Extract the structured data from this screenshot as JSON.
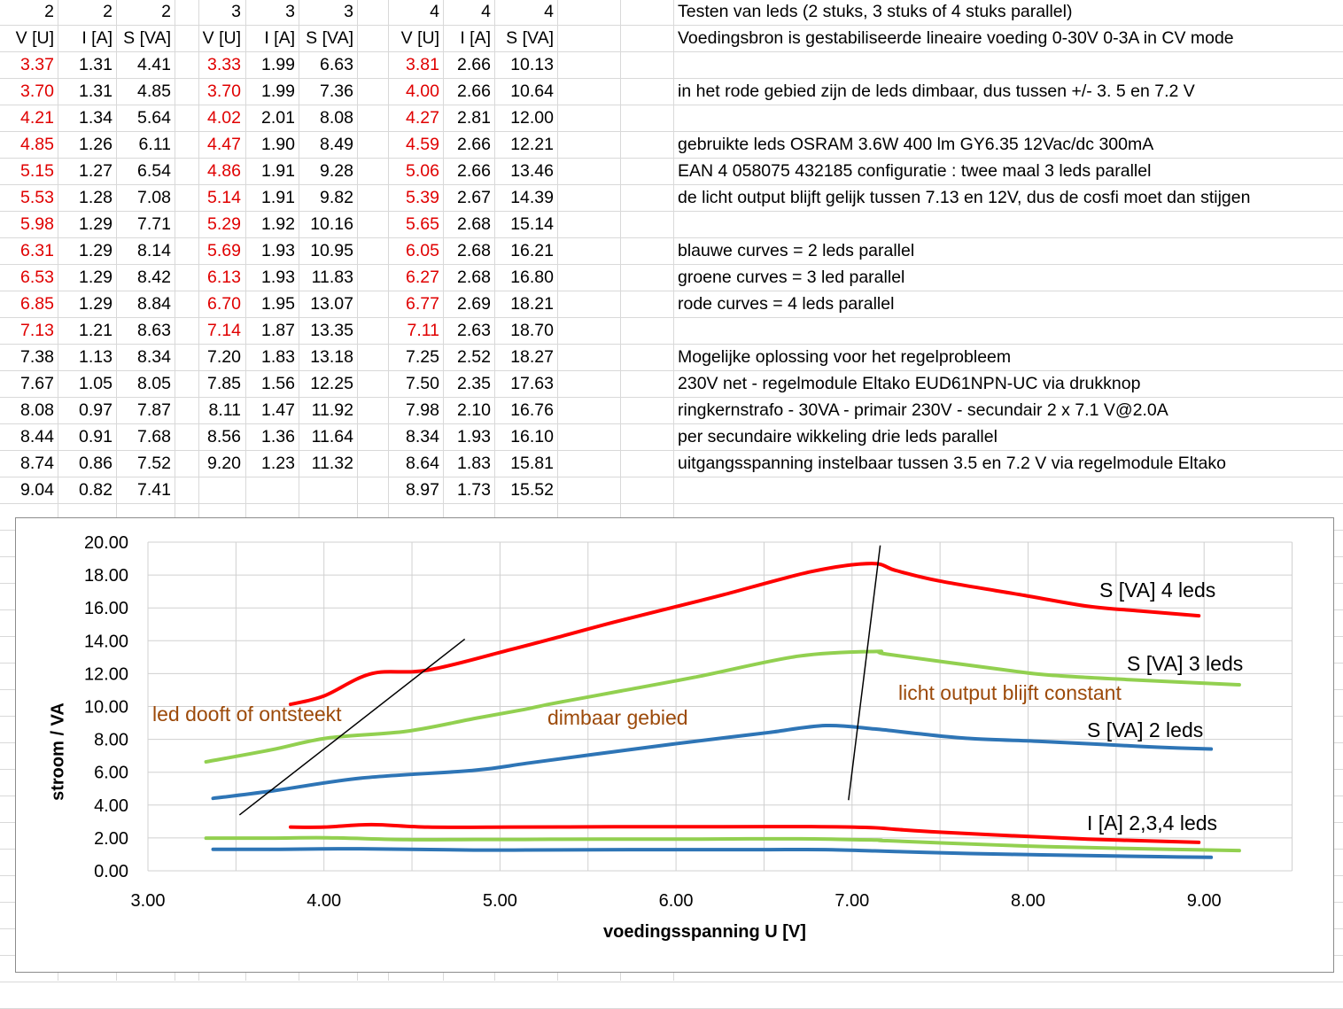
{
  "sheet": {
    "group_counts": [
      "2",
      "2",
      "2",
      "3",
      "3",
      "3",
      "4",
      "4",
      "4"
    ],
    "headers": [
      "V [U]",
      "I [A]",
      "S [VA]",
      "V [U]",
      "I [A]",
      "S [VA]",
      "V [U]",
      "I [A]",
      "S [VA]"
    ],
    "highlight_color": "#e00000",
    "highlighted_rows": 11,
    "rows": [
      [
        "3.37",
        "1.31",
        "4.41",
        "3.33",
        "1.99",
        "6.63",
        "3.81",
        "2.66",
        "10.13"
      ],
      [
        "3.70",
        "1.31",
        "4.85",
        "3.70",
        "1.99",
        "7.36",
        "4.00",
        "2.66",
        "10.64"
      ],
      [
        "4.21",
        "1.34",
        "5.64",
        "4.02",
        "2.01",
        "8.08",
        "4.27",
        "2.81",
        "12.00"
      ],
      [
        "4.85",
        "1.26",
        "6.11",
        "4.47",
        "1.90",
        "8.49",
        "4.59",
        "2.66",
        "12.21"
      ],
      [
        "5.15",
        "1.27",
        "6.54",
        "4.86",
        "1.91",
        "9.28",
        "5.06",
        "2.66",
        "13.46"
      ],
      [
        "5.53",
        "1.28",
        "7.08",
        "5.14",
        "1.91",
        "9.82",
        "5.39",
        "2.67",
        "14.39"
      ],
      [
        "5.98",
        "1.29",
        "7.71",
        "5.29",
        "1.92",
        "10.16",
        "5.65",
        "2.68",
        "15.14"
      ],
      [
        "6.31",
        "1.29",
        "8.14",
        "5.69",
        "1.93",
        "10.95",
        "6.05",
        "2.68",
        "16.21"
      ],
      [
        "6.53",
        "1.29",
        "8.42",
        "6.13",
        "1.93",
        "11.83",
        "6.27",
        "2.68",
        "16.80"
      ],
      [
        "6.85",
        "1.29",
        "8.84",
        "6.70",
        "1.95",
        "13.07",
        "6.77",
        "2.69",
        "18.21"
      ],
      [
        "7.13",
        "1.21",
        "8.63",
        "7.14",
        "1.87",
        "13.35",
        "7.11",
        "2.63",
        "18.70"
      ],
      [
        "7.38",
        "1.13",
        "8.34",
        "7.20",
        "1.83",
        "13.18",
        "7.25",
        "2.52",
        "18.27"
      ],
      [
        "7.67",
        "1.05",
        "8.05",
        "7.85",
        "1.56",
        "12.25",
        "7.50",
        "2.35",
        "17.63"
      ],
      [
        "8.08",
        "0.97",
        "7.87",
        "8.11",
        "1.47",
        "11.92",
        "7.98",
        "2.10",
        "16.76"
      ],
      [
        "8.44",
        "0.91",
        "7.68",
        "8.56",
        "1.36",
        "11.64",
        "8.34",
        "1.93",
        "16.10"
      ],
      [
        "8.74",
        "0.86",
        "7.52",
        "9.20",
        "1.23",
        "11.32",
        "8.64",
        "1.83",
        "15.81"
      ],
      [
        "9.04",
        "0.82",
        "7.41",
        "",
        "",
        "",
        "8.97",
        "1.73",
        "15.52"
      ]
    ],
    "notes": [
      "Testen van leds (2 stuks, 3 stuks of 4 stuks parallel)",
      "Voedingsbron is gestabiliseerde lineaire voeding 0-30V 0-3A in CV mode",
      "",
      "in het rode gebied zijn de leds dimbaar, dus tussen +/-  3. 5 en 7.2 V",
      "",
      "gebruikte leds OSRAM  3.6W   400 lm  GY6.35  12Vac/dc   300mA",
      "EAN 4 058075 432185     configuratie : twee maal 3 leds parallel",
      "de licht output blijft gelijk tussen 7.13 en 12V, dus de cosfi moet dan stijgen",
      "",
      "blauwe curves = 2 leds parallel",
      "groene curves = 3 led parallel",
      "rode curves = 4 leds parallel",
      "",
      "Mogelijke oplossing voor het regelprobleem",
      "230V net  - regelmodule Eltako  EUD61NPN-UC  via drukknop",
      "ringkernstrafo - 30VA  - primair 230V - secundair 2 x 7.1 V@2.0A",
      "per secundaire wikkeling  drie leds parallel",
      "uitgangsspanning instelbaar tussen 3.5 en 7.2 V  via regelmodule Eltako"
    ]
  },
  "chart_data": {
    "type": "line",
    "title": "",
    "xlabel": "voedingsspanning  U   [V]",
    "ylabel": "stroom / VA",
    "xlim": [
      3,
      9.5
    ],
    "ylim": [
      0,
      20
    ],
    "x_ticks": [
      "3.00",
      "4.00",
      "5.00",
      "6.00",
      "7.00",
      "8.00",
      "9.00"
    ],
    "y_ticks": [
      "0.00",
      "2.00",
      "4.00",
      "6.00",
      "8.00",
      "10.00",
      "12.00",
      "14.00",
      "16.00",
      "18.00",
      "20.00"
    ],
    "grid": true,
    "series": [
      {
        "name": "S [VA] 2 leds",
        "color": "#2e75b6",
        "x": [
          3.37,
          3.7,
          4.21,
          4.85,
          5.15,
          5.53,
          5.98,
          6.31,
          6.53,
          6.85,
          7.13,
          7.38,
          7.67,
          8.08,
          8.44,
          8.74,
          9.04
        ],
        "y": [
          4.41,
          4.85,
          5.64,
          6.11,
          6.54,
          7.08,
          7.71,
          8.14,
          8.42,
          8.84,
          8.63,
          8.34,
          8.05,
          7.87,
          7.68,
          7.52,
          7.41
        ]
      },
      {
        "name": "S [VA] 3 leds",
        "color": "#92d050",
        "x": [
          3.33,
          3.7,
          4.02,
          4.47,
          4.86,
          5.14,
          5.29,
          5.69,
          6.13,
          6.7,
          7.14,
          7.2,
          7.85,
          8.11,
          8.56,
          9.2
        ],
        "y": [
          6.63,
          7.36,
          8.08,
          8.49,
          9.28,
          9.82,
          10.16,
          10.95,
          11.83,
          13.07,
          13.35,
          13.18,
          12.25,
          11.92,
          11.64,
          11.32
        ]
      },
      {
        "name": "S [VA] 4 leds",
        "color": "#ff0000",
        "x": [
          3.81,
          4.0,
          4.27,
          4.59,
          5.06,
          5.39,
          5.65,
          6.05,
          6.27,
          6.77,
          7.11,
          7.25,
          7.5,
          7.98,
          8.34,
          8.64,
          8.97
        ],
        "y": [
          10.13,
          10.64,
          12.0,
          12.21,
          13.46,
          14.39,
          15.14,
          16.21,
          16.8,
          18.21,
          18.7,
          18.27,
          17.63,
          16.76,
          16.1,
          15.81,
          15.52
        ]
      },
      {
        "name": "I [A] 2 leds",
        "color": "#2e75b6",
        "x": [
          3.37,
          3.7,
          4.21,
          4.85,
          5.15,
          5.53,
          5.98,
          6.31,
          6.53,
          6.85,
          7.13,
          7.38,
          7.67,
          8.08,
          8.44,
          8.74,
          9.04
        ],
        "y": [
          1.31,
          1.31,
          1.34,
          1.26,
          1.27,
          1.28,
          1.29,
          1.29,
          1.29,
          1.29,
          1.21,
          1.13,
          1.05,
          0.97,
          0.91,
          0.86,
          0.82
        ]
      },
      {
        "name": "I [A] 3 leds",
        "color": "#92d050",
        "x": [
          3.33,
          3.7,
          4.02,
          4.47,
          4.86,
          5.14,
          5.29,
          5.69,
          6.13,
          6.7,
          7.14,
          7.2,
          7.85,
          8.11,
          8.56,
          9.2
        ],
        "y": [
          1.99,
          1.99,
          2.01,
          1.9,
          1.91,
          1.91,
          1.92,
          1.93,
          1.93,
          1.95,
          1.87,
          1.83,
          1.56,
          1.47,
          1.36,
          1.23
        ]
      },
      {
        "name": "I [A] 4 leds",
        "color": "#ff0000",
        "x": [
          3.81,
          4.0,
          4.27,
          4.59,
          5.06,
          5.39,
          5.65,
          6.05,
          6.27,
          6.77,
          7.11,
          7.25,
          7.5,
          7.98,
          8.34,
          8.64,
          8.97
        ],
        "y": [
          2.66,
          2.66,
          2.81,
          2.66,
          2.66,
          2.67,
          2.68,
          2.68,
          2.68,
          2.69,
          2.63,
          2.52,
          2.35,
          2.1,
          1.93,
          1.83,
          1.73
        ]
      }
    ],
    "reference_lines": [
      {
        "x": [
          3.52,
          4.8
        ],
        "y": [
          3.4,
          14.1
        ],
        "color": "#000000"
      },
      {
        "x": [
          6.98,
          7.16
        ],
        "y": [
          4.3,
          19.8
        ],
        "color": "#000000"
      }
    ],
    "annotations": {
      "led_off": "led dooft of ontsteekt",
      "dimmable": "dimbaar gebied",
      "constant": "licht output blijft constant",
      "s4": "S [VA] 4 leds",
      "s3": "S [VA] 3 leds",
      "s2": "S [VA] 2 leds",
      "i": "I [A] 2,3,4 leds"
    },
    "annotation_color": "#9c4a0a"
  }
}
